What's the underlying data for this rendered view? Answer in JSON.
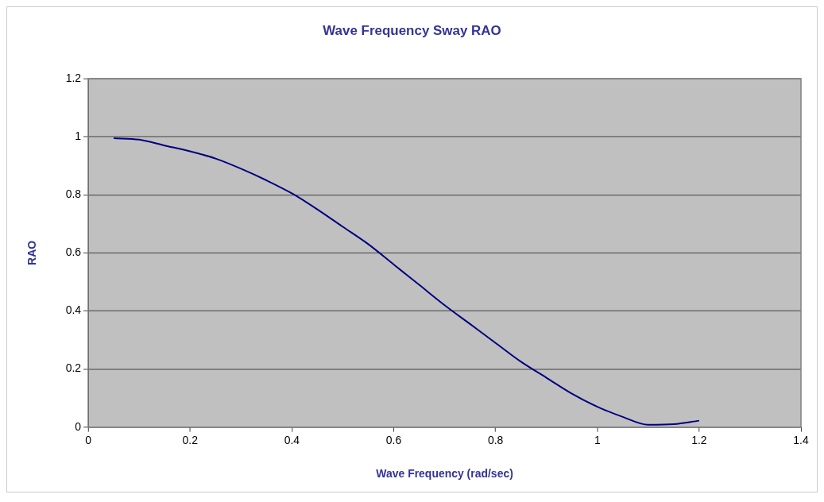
{
  "chart_data": {
    "type": "line",
    "title": "Wave Frequency Sway RAO",
    "xlabel": "Wave Frequency (rad/sec)",
    "ylabel": "RAO",
    "x": [
      0.05,
      0.1,
      0.15,
      0.2,
      0.25,
      0.3,
      0.35,
      0.4,
      0.45,
      0.5,
      0.55,
      0.6,
      0.65,
      0.7,
      0.75,
      0.8,
      0.85,
      0.9,
      0.95,
      1.0,
      1.05,
      1.1,
      1.15,
      1.2
    ],
    "series": [
      {
        "color": "#000080",
        "values": [
          0.995,
          0.99,
          0.97,
          0.95,
          0.925,
          0.89,
          0.85,
          0.805,
          0.75,
          0.69,
          0.63,
          0.56,
          0.49,
          0.42,
          0.355,
          0.29,
          0.225,
          0.17,
          0.115,
          0.07,
          0.035,
          0.008,
          0.01,
          0.022
        ]
      }
    ],
    "xlim": [
      0,
      1.4
    ],
    "xticks": [
      0,
      0.2,
      0.4,
      0.6,
      0.8,
      1,
      1.2,
      1.4
    ],
    "ylim": [
      0,
      1.2
    ],
    "yticks": [
      0,
      0.2,
      0.4,
      0.6,
      0.8,
      1,
      1.2
    ],
    "grid": "y",
    "legend": false,
    "marker": "none",
    "line_style": "solid"
  }
}
